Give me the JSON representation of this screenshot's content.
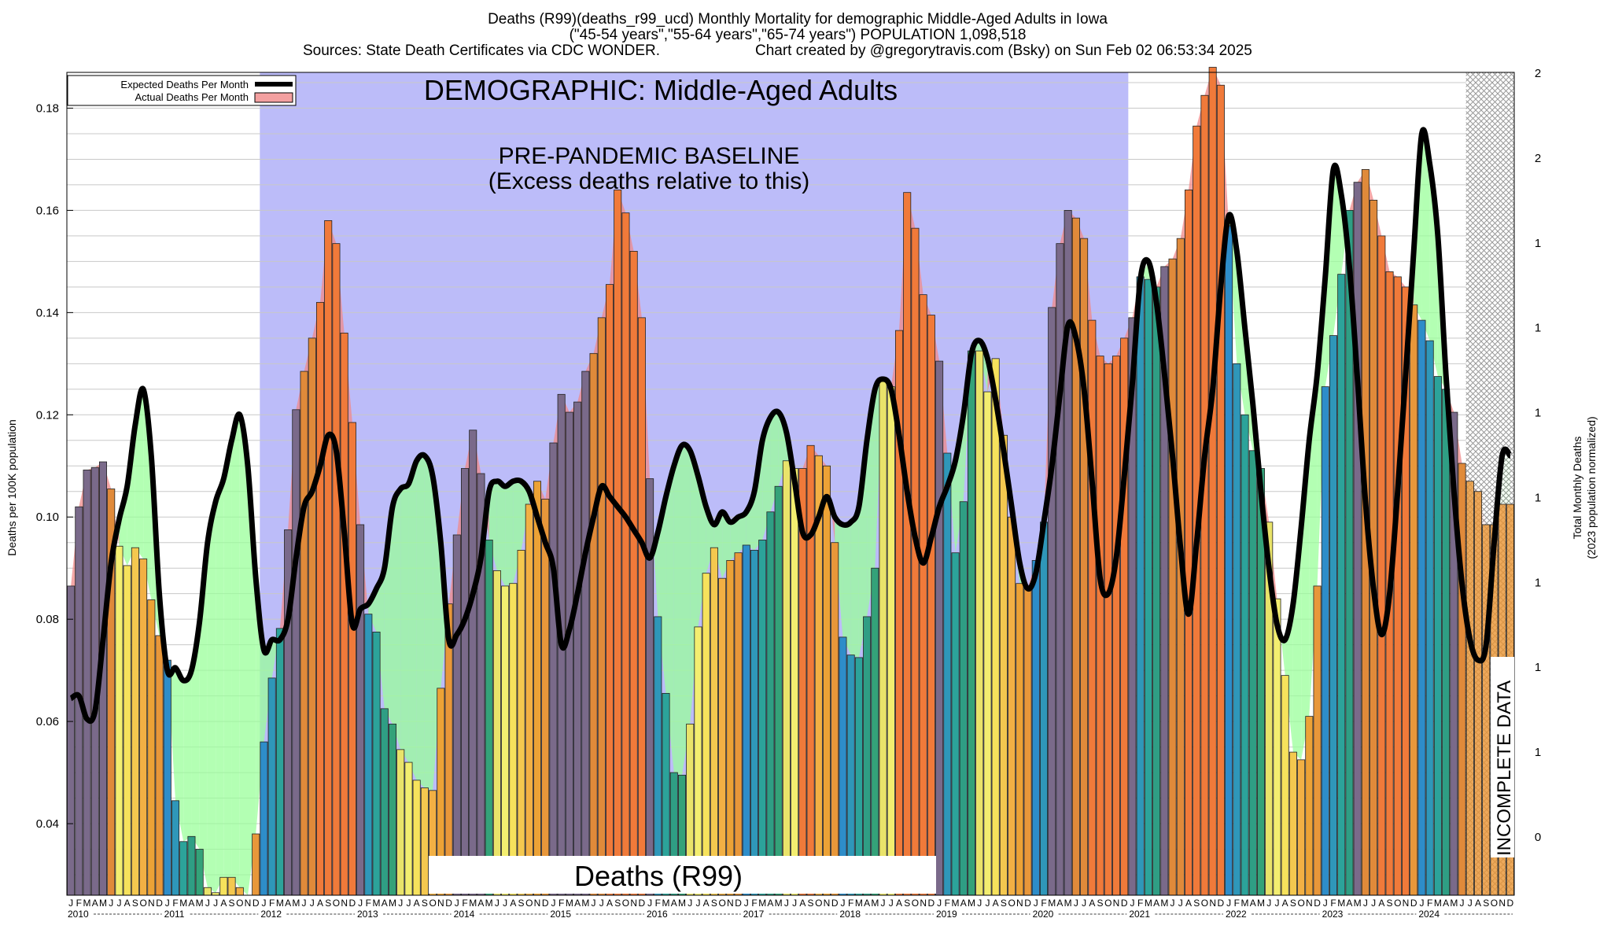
{
  "titles": {
    "line1": "Deaths (R99)(deaths_r99_ucd) Monthly Mortality for demographic Middle-Aged Adults in Iowa",
    "line2": "(\"45-54 years\",\"55-64 years\",\"65-74 years\") POPULATION 1,098,518",
    "line3a": "Sources: State Death Certificates via CDC WONDER.",
    "line3b": "Chart created by @gregorytravis.com (Bsky) on Sun Feb 02 06:53:34 2025"
  },
  "annotations": {
    "demographic": "DEMOGRAPHIC: Middle-Aged Adults",
    "baseline1": "PRE-PANDEMIC BASELINE",
    "baseline2": "(Excess deaths relative to this)",
    "cause": "Deaths (R99)",
    "incomplete": "INCOMPLETE DATA"
  },
  "legend": {
    "expected": "Expected Deaths Per Month",
    "actual": "Actual Deaths Per Month"
  },
  "colors": {
    "baseline_band": "#bcbcf9",
    "excess_fill": "#f08a8a",
    "deficit_fill": "#99ff99",
    "expected_line": "#000000",
    "incomplete_hatch": "#888888"
  },
  "chart_data": {
    "type": "bar",
    "ylabel": "Deaths per 100K population",
    "y2label_1": "Total Monthly Deaths",
    "y2label_2": "(2023 population normalized)",
    "ylim": [
      0.026,
      0.187
    ],
    "yticks": [
      0.04,
      0.06,
      0.08,
      0.1,
      0.12,
      0.14,
      0.16,
      0.18
    ],
    "y2ticks": [
      "0",
      "1",
      "1",
      "1",
      "1",
      "1",
      "1",
      "1",
      "2",
      "2"
    ],
    "grid": true,
    "legend_position": "top-left",
    "month_letters": [
      "J",
      "F",
      "M",
      "A",
      "M",
      "J",
      "J",
      "A",
      "S",
      "O",
      "N",
      "D"
    ],
    "years": [
      "2010",
      "2011",
      "2012",
      "2013",
      "2014",
      "2015",
      "2016",
      "2017",
      "2018",
      "2019",
      "2020",
      "2021",
      "2022",
      "2023",
      "2024"
    ],
    "baseline_band_months": [
      24,
      131
    ],
    "incomplete_from_month": 174,
    "series": [
      {
        "name": "Actual Deaths Per Month",
        "values": [
          0.0865,
          0.102,
          0.1092,
          0.1097,
          0.1108,
          0.1055,
          0.0943,
          0.0905,
          0.094,
          0.0918,
          0.0838,
          0.0768,
          0.072,
          0.0445,
          0.0365,
          0.0375,
          0.035,
          0.0275,
          0.0265,
          0.0295,
          0.0295,
          0.0275,
          0.026,
          0.038,
          0.056,
          0.0685,
          0.0782,
          0.0975,
          0.121,
          0.1285,
          0.135,
          0.142,
          0.158,
          0.1535,
          0.136,
          0.1185,
          0.0985,
          0.081,
          0.0775,
          0.0625,
          0.0595,
          0.0545,
          0.052,
          0.0485,
          0.047,
          0.0465,
          0.0665,
          0.083,
          0.0965,
          0.1095,
          0.117,
          0.1085,
          0.0955,
          0.0895,
          0.0865,
          0.087,
          0.0935,
          0.1025,
          0.107,
          0.1035,
          0.1145,
          0.124,
          0.1205,
          0.1225,
          0.1285,
          0.132,
          0.139,
          0.1455,
          0.164,
          0.1595,
          0.152,
          0.139,
          0.1075,
          0.0805,
          0.0655,
          0.05,
          0.0495,
          0.0595,
          0.0785,
          0.089,
          0.094,
          0.088,
          0.0915,
          0.093,
          0.0945,
          0.0935,
          0.0955,
          0.101,
          0.106,
          0.111,
          0.1095,
          0.1095,
          0.114,
          0.112,
          0.11,
          0.095,
          0.0765,
          0.073,
          0.0725,
          0.0805,
          0.09,
          0.127,
          0.1255,
          0.1365,
          0.1635,
          0.1565,
          0.1435,
          0.1395,
          0.1305,
          0.1125,
          0.093,
          0.103,
          0.1325,
          0.1325,
          0.1245,
          0.131,
          0.116,
          0.1,
          0.087,
          0.086,
          0.0915,
          0.099,
          0.141,
          0.1535,
          0.16,
          0.1585,
          0.1545,
          0.1385,
          0.1315,
          0.13,
          0.1315,
          0.135,
          0.139,
          0.147,
          0.1465,
          0.145,
          0.149,
          0.1505,
          0.1545,
          0.164,
          0.1765,
          0.1825,
          0.188,
          0.1845,
          0.157,
          0.13,
          0.12,
          0.113,
          0.1095,
          0.099,
          0.084,
          0.069,
          0.054,
          0.0525,
          0.061,
          0.0865,
          0.1255,
          0.1355,
          0.1475,
          0.16,
          0.1655,
          0.168,
          0.162,
          0.155,
          0.148,
          0.147,
          0.145,
          0.1415,
          0.1385,
          0.1345,
          0.1275,
          0.125,
          0.1205,
          0.1105,
          0.107,
          0.105,
          0.0985,
          0.0985,
          0.1025,
          0.1025
        ]
      },
      {
        "name": "Expected Deaths Per Month",
        "values": [
          0.0645,
          0.065,
          0.0605,
          0.062,
          0.076,
          0.091,
          0.0995,
          0.106,
          0.118,
          0.125,
          0.112,
          0.085,
          0.07,
          0.0705,
          0.068,
          0.07,
          0.0795,
          0.095,
          0.103,
          0.1075,
          0.115,
          0.12,
          0.11,
          0.088,
          0.074,
          0.076,
          0.076,
          0.08,
          0.092,
          0.102,
          0.105,
          0.11,
          0.116,
          0.113,
          0.097,
          0.079,
          0.082,
          0.083,
          0.086,
          0.09,
          0.102,
          0.1055,
          0.1065,
          0.111,
          0.112,
          0.108,
          0.095,
          0.076,
          0.077,
          0.08,
          0.085,
          0.092,
          0.105,
          0.107,
          0.106,
          0.107,
          0.107,
          0.105,
          0.1,
          0.095,
          0.09,
          0.075,
          0.078,
          0.085,
          0.093,
          0.1,
          0.106,
          0.104,
          0.102,
          0.1,
          0.0975,
          0.095,
          0.092,
          0.097,
          0.104,
          0.11,
          0.114,
          0.113,
          0.108,
          0.102,
          0.0985,
          0.101,
          0.099,
          0.1,
          0.101,
          0.105,
          0.115,
          0.1195,
          0.1205,
          0.1165,
          0.107,
          0.097,
          0.0965,
          0.1,
          0.104,
          0.1,
          0.0985,
          0.099,
          0.102,
          0.115,
          0.125,
          0.127,
          0.125,
          0.116,
          0.105,
          0.096,
          0.091,
          0.096,
          0.102,
          0.106,
          0.111,
          0.12,
          0.132,
          0.1345,
          0.131,
          0.123,
          0.113,
          0.102,
          0.091,
          0.086,
          0.089,
          0.099,
          0.11,
          0.124,
          0.1375,
          0.135,
          0.125,
          0.107,
          0.088,
          0.085,
          0.092,
          0.108,
          0.126,
          0.1465,
          0.15,
          0.142,
          0.128,
          0.112,
          0.094,
          0.081,
          0.095,
          0.112,
          0.125,
          0.145,
          0.159,
          0.152,
          0.137,
          0.122,
          0.105,
          0.09,
          0.079,
          0.076,
          0.083,
          0.098,
          0.115,
          0.128,
          0.147,
          0.168,
          0.163,
          0.149,
          0.127,
          0.103,
          0.086,
          0.077,
          0.085,
          0.105,
          0.128,
          0.152,
          0.175,
          0.169,
          0.155,
          0.128,
          0.105,
          0.087,
          0.076,
          0.072,
          0.075,
          0.095,
          0.112,
          0.112
        ]
      }
    ]
  }
}
